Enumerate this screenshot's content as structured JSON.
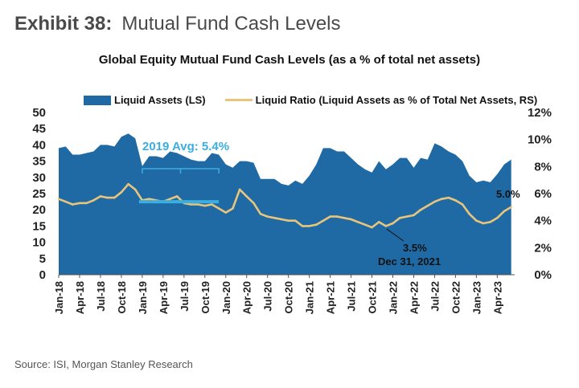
{
  "header": {
    "exhibit_label": "Exhibit 38:",
    "exhibit_title": "Mutual Fund Cash Levels"
  },
  "chart_data": {
    "type": "area",
    "title": "Global Equity Mutual Fund Cash Levels (as a % of total net assets)",
    "legend": {
      "area": "Liquid Assets (LS)",
      "line": "Liquid Ratio (Liquid Assets as % of Total Net Assets, RS)",
      "placement": "top"
    },
    "y_left": {
      "min": 0,
      "max": 50,
      "ticks": [
        "0",
        "5",
        "10",
        "15",
        "20",
        "25",
        "30",
        "35",
        "40",
        "45",
        "50"
      ]
    },
    "y_right": {
      "min": 0,
      "max": 12,
      "ticks": [
        "0%",
        "2%",
        "4%",
        "6%",
        "8%",
        "10%",
        "12%"
      ]
    },
    "x_ticks": [
      "Jan-18",
      "Apr-18",
      "Jul-18",
      "Oct-18",
      "Jan-19",
      "Apr-19",
      "Jul-19",
      "Oct-19",
      "Jan-20",
      "Apr-20",
      "Jul-20",
      "Oct-20",
      "Jan-21",
      "Apr-21",
      "Jul-21",
      "Oct-21",
      "Jan-22",
      "Apr-22",
      "Jul-22",
      "Oct-22",
      "Jan-23",
      "Apr-23"
    ],
    "x_tick_months": [
      0,
      3,
      6,
      9,
      12,
      15,
      18,
      21,
      24,
      27,
      30,
      33,
      36,
      39,
      42,
      45,
      48,
      51,
      54,
      57,
      60,
      63
    ],
    "months": [
      0,
      1,
      2,
      3,
      4,
      5,
      6,
      7,
      8,
      9,
      10,
      11,
      12,
      13,
      14,
      15,
      16,
      17,
      18,
      19,
      20,
      21,
      22,
      23,
      24,
      25,
      26,
      27,
      28,
      29,
      30,
      31,
      32,
      33,
      34,
      35,
      36,
      37,
      38,
      39,
      40,
      41,
      42,
      43,
      44,
      45,
      46,
      47,
      48,
      49,
      50,
      51,
      52,
      53,
      54,
      55,
      56,
      57,
      58,
      59,
      60,
      61,
      62,
      63,
      64,
      65
    ],
    "series": [
      {
        "name": "Liquid Assets (LS)",
        "axis": "left",
        "values": [
          39,
          39.5,
          37,
          37,
          37.5,
          38,
          40,
          40,
          39.5,
          42.5,
          43.5,
          42,
          33.5,
          36.5,
          36.5,
          36,
          38,
          37.5,
          36.5,
          35.5,
          35,
          35,
          37.5,
          37,
          34,
          33,
          35,
          35,
          34.5,
          29.5,
          29.5,
          29.5,
          28,
          27.5,
          29,
          28,
          30.5,
          34,
          39,
          39,
          38,
          38,
          36,
          34,
          32.5,
          31.5,
          35,
          32.5,
          34,
          36,
          36,
          33,
          36,
          35.5,
          40.5,
          39.5,
          38,
          37,
          35,
          30.5,
          28.5,
          29,
          28.5,
          31,
          34,
          35.5
        ]
      },
      {
        "name": "Liquid Ratio (Liquid Assets as % of Total Net Assets, RS)",
        "axis": "right",
        "values": [
          5.6,
          5.4,
          5.2,
          5.3,
          5.3,
          5.5,
          5.8,
          5.7,
          5.7,
          6.1,
          6.7,
          6.3,
          5.5,
          5.6,
          5.5,
          5.4,
          5.6,
          5.8,
          5.3,
          5.2,
          5.2,
          5.1,
          5.2,
          4.9,
          4.6,
          4.9,
          6.3,
          5.8,
          5.3,
          4.5,
          4.3,
          4.2,
          4.1,
          4.0,
          4.0,
          3.6,
          3.6,
          3.7,
          4.0,
          4.3,
          4.3,
          4.2,
          4.1,
          3.9,
          3.7,
          3.5,
          3.9,
          3.6,
          3.8,
          4.2,
          4.3,
          4.4,
          4.8,
          5.1,
          5.4,
          5.6,
          5.7,
          5.5,
          5.2,
          4.5,
          4.0,
          3.8,
          3.9,
          4.2,
          4.7,
          5.0
        ]
      }
    ],
    "annotations": {
      "avg_2019": "2019 Avg: 5.4%",
      "avg_2019_value": 5.4,
      "low_value_label": "3.5%",
      "low_date_label": "Dec 31, 2021",
      "low_value": 3.5,
      "last_value_label": "5.0%"
    },
    "colors": {
      "area": "#1f6aa5",
      "line": "#e8c57a",
      "annotation": "#3aaee0"
    }
  },
  "footer": {
    "source": "Source: ISI, Morgan Stanley Research"
  }
}
